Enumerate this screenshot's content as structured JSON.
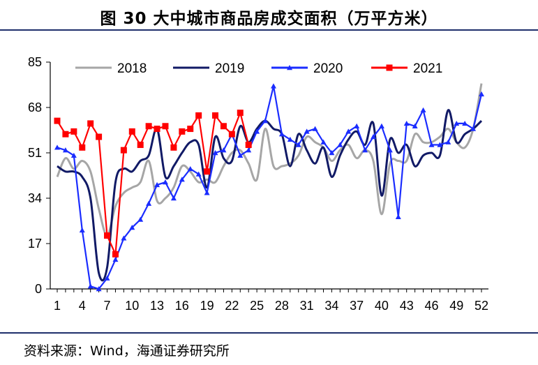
{
  "header": {
    "title": "图 30 大中城市商品房成交面积（万平方米）"
  },
  "footer": {
    "source": "资料来源：Wind，海通证券研究所"
  },
  "chart_data": {
    "type": "line",
    "title": "图 30 大中城市商品房成交面积（万平方米）",
    "ylim": [
      0,
      85
    ],
    "yticks": [
      0,
      17,
      34,
      51,
      68,
      85
    ],
    "xlim": [
      1,
      52
    ],
    "xticks": [
      1,
      4,
      7,
      10,
      13,
      16,
      19,
      22,
      25,
      28,
      31,
      34,
      37,
      40,
      43,
      46,
      49,
      52
    ],
    "legend": "top",
    "series": [
      {
        "name": "2018",
        "color": "#a6a6a6",
        "marker": "none",
        "x": [
          1,
          2,
          3,
          4,
          5,
          6,
          7,
          8,
          9,
          10,
          11,
          12,
          13,
          14,
          15,
          16,
          17,
          18,
          19,
          20,
          21,
          22,
          23,
          24,
          25,
          26,
          27,
          28,
          29,
          30,
          31,
          32,
          33,
          34,
          35,
          36,
          37,
          38,
          39,
          40,
          41,
          42,
          43,
          44,
          45,
          46,
          47,
          48,
          49,
          50,
          51,
          52
        ],
        "y": [
          42,
          49,
          45,
          48,
          44,
          30,
          20,
          31,
          36,
          38,
          40,
          48,
          33,
          34,
          38,
          46,
          44,
          40,
          41,
          40,
          46,
          51,
          52,
          47,
          41,
          60,
          46,
          46,
          47,
          50,
          57,
          55,
          53,
          48,
          52,
          54,
          49,
          52,
          48,
          28,
          47,
          48,
          48,
          58,
          55,
          55,
          57,
          60,
          55,
          53,
          60,
          77
        ]
      },
      {
        "name": "2019",
        "color": "#111a66",
        "marker": "none",
        "x": [
          1,
          2,
          3,
          4,
          5,
          6,
          7,
          8,
          9,
          10,
          11,
          12,
          13,
          14,
          15,
          16,
          17,
          18,
          19,
          20,
          21,
          22,
          23,
          24,
          25,
          26,
          27,
          28,
          29,
          30,
          31,
          32,
          33,
          34,
          35,
          36,
          37,
          38,
          39,
          40,
          41,
          42,
          43,
          44,
          45,
          46,
          47,
          48,
          49,
          50,
          51,
          52
        ],
        "y": [
          46,
          44,
          44,
          42,
          34,
          6,
          8,
          40,
          45,
          44,
          48,
          50,
          60,
          42,
          46,
          51,
          55,
          54,
          38,
          57,
          49,
          48,
          61,
          55,
          60,
          63,
          60,
          58,
          46,
          58,
          52,
          47,
          53,
          42,
          50,
          56,
          59,
          54,
          62,
          35,
          56,
          51,
          54,
          46,
          50,
          51,
          50,
          67,
          55,
          58,
          60,
          63
        ]
      },
      {
        "name": "2020",
        "color": "#1a2cff",
        "marker": "triangle",
        "x": [
          1,
          2,
          3,
          4,
          5,
          6,
          7,
          8,
          9,
          10,
          11,
          12,
          13,
          14,
          15,
          16,
          17,
          18,
          19,
          20,
          21,
          22,
          23,
          24,
          25,
          26,
          27,
          28,
          29,
          30,
          31,
          32,
          33,
          34,
          35,
          36,
          37,
          38,
          39,
          40,
          41,
          42,
          43,
          44,
          45,
          46,
          47,
          48,
          49,
          50,
          51,
          52
        ],
        "y": [
          53,
          52,
          50,
          22,
          1,
          0,
          4,
          11,
          19,
          23,
          26,
          32,
          39,
          40,
          34,
          41,
          45,
          43,
          36,
          51,
          52,
          58,
          50,
          52,
          59,
          63,
          76,
          58,
          56,
          54,
          59,
          60,
          55,
          51,
          54,
          59,
          61,
          52,
          57,
          61,
          52,
          27,
          62,
          61,
          67,
          54,
          54,
          55,
          62,
          62,
          60,
          73
        ]
      },
      {
        "name": "2021",
        "color": "#ff0000",
        "marker": "square",
        "x": [
          1,
          2,
          3,
          4,
          5,
          6,
          7,
          8,
          9,
          10,
          11,
          12,
          13,
          14,
          15,
          16,
          17,
          18,
          19,
          20,
          21,
          22,
          23,
          24
        ],
        "y": [
          63,
          58,
          59,
          53,
          62,
          57,
          20,
          13,
          52,
          59,
          54,
          61,
          60,
          61,
          53,
          59,
          60,
          65,
          44,
          65,
          61,
          58,
          66,
          54
        ]
      }
    ]
  }
}
